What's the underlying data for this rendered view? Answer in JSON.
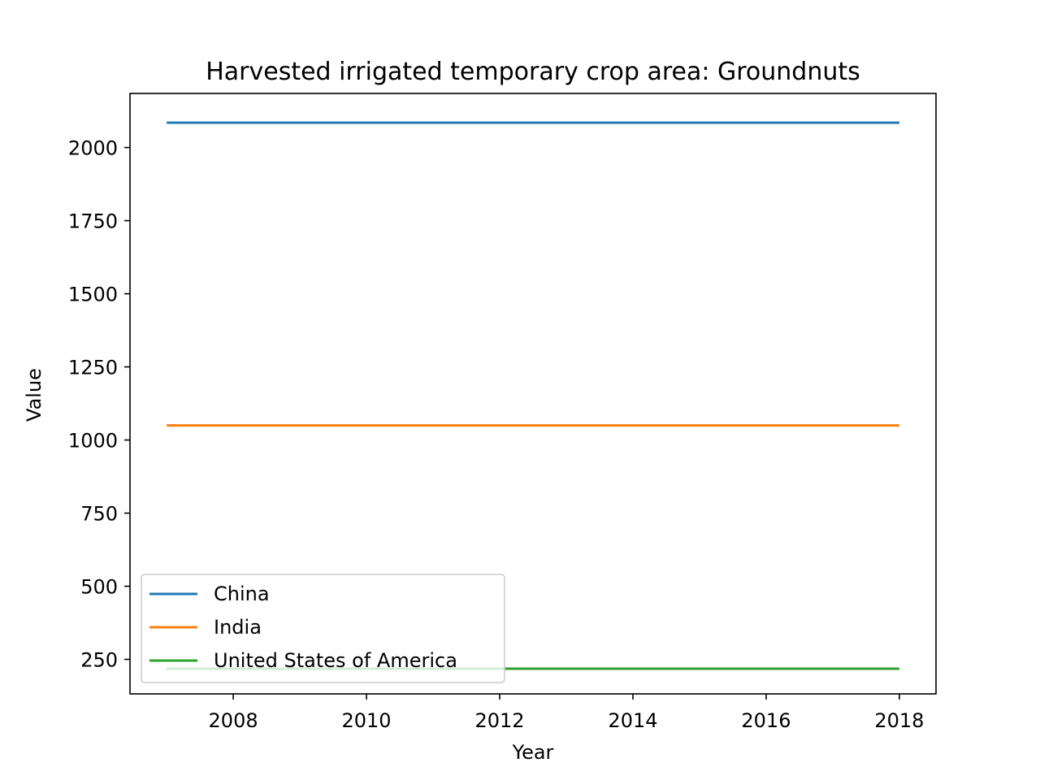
{
  "chart_data": {
    "type": "line",
    "title": "Harvested irrigated temporary crop area: Groundnuts",
    "xlabel": "Year",
    "ylabel": "Value",
    "x": [
      2007,
      2018
    ],
    "xlim": [
      2006.45,
      2018.55
    ],
    "ylim": [
      132,
      2185
    ],
    "xticks": [
      2008,
      2010,
      2012,
      2014,
      2016,
      2018
    ],
    "yticks": [
      250,
      500,
      750,
      1000,
      1250,
      1500,
      1750,
      2000
    ],
    "grid": false,
    "legend_position": "lower-left",
    "series": [
      {
        "name": "China",
        "values": [
          2085,
          2085
        ],
        "color": "#1f77b4"
      },
      {
        "name": "India",
        "values": [
          1050,
          1050
        ],
        "color": "#ff7f0e"
      },
      {
        "name": "United States of America",
        "values": [
          218,
          218
        ],
        "color": "#2ca02c"
      }
    ]
  }
}
